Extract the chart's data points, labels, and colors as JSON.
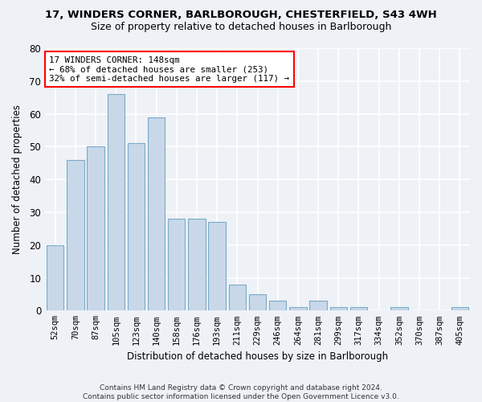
{
  "title_line1": "17, WINDERS CORNER, BARLBOROUGH, CHESTERFIELD, S43 4WH",
  "title_line2": "Size of property relative to detached houses in Barlborough",
  "xlabel": "Distribution of detached houses by size in Barlborough",
  "ylabel": "Number of detached properties",
  "categories": [
    "52sqm",
    "70sqm",
    "87sqm",
    "105sqm",
    "123sqm",
    "140sqm",
    "158sqm",
    "176sqm",
    "193sqm",
    "211sqm",
    "229sqm",
    "246sqm",
    "264sqm",
    "281sqm",
    "299sqm",
    "317sqm",
    "334sqm",
    "352sqm",
    "370sqm",
    "387sqm",
    "405sqm"
  ],
  "values": [
    20,
    46,
    50,
    66,
    51,
    59,
    28,
    28,
    27,
    8,
    5,
    3,
    1,
    3,
    1,
    1,
    0,
    1,
    0,
    0,
    1
  ],
  "bar_color": "#c8d8e8",
  "bar_edge_color": "#7aaac8",
  "ylim": [
    0,
    80
  ],
  "yticks": [
    0,
    10,
    20,
    30,
    40,
    50,
    60,
    70,
    80
  ],
  "annotation_text": "17 WINDERS CORNER: 148sqm\n← 68% of detached houses are smaller (253)\n32% of semi-detached houses are larger (117) →",
  "annotation_box_color": "white",
  "annotation_box_edge": "red",
  "bg_color": "#eef2f7",
  "plot_bg_color": "#eef2f7",
  "grid_color": "#ffffff",
  "footer_line1": "Contains HM Land Registry data © Crown copyright and database right 2024.",
  "footer_line2": "Contains public sector information licensed under the Open Government Licence v3.0."
}
